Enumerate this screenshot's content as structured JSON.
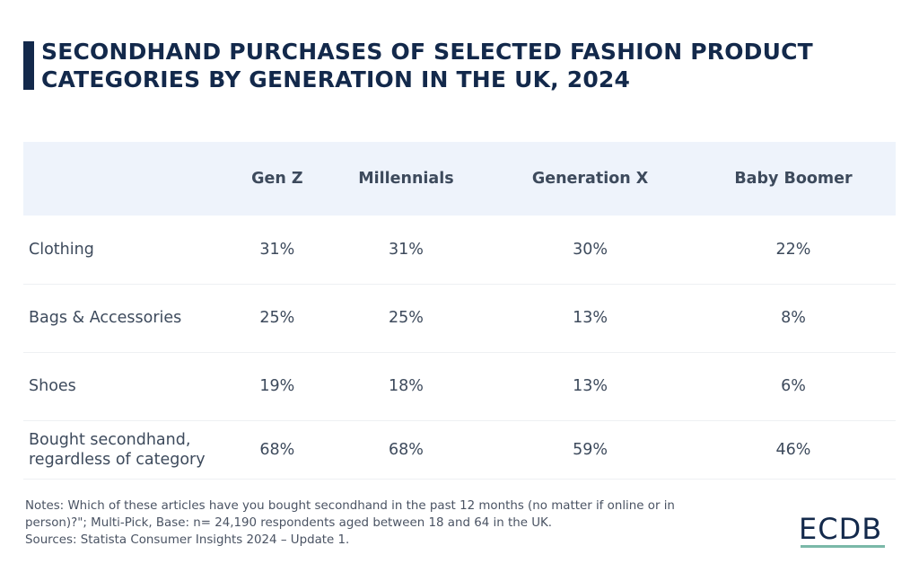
{
  "title_line1": "SECONDHAND PURCHASES OF SELECTED FASHION PRODUCT",
  "title_line2": "CATEGORIES BY GENERATION IN THE UK, 2024",
  "chart_data": {
    "type": "table",
    "title": "SECONDHAND PURCHASES OF SELECTED FASHION PRODUCT CATEGORIES BY GENERATION IN THE UK, 2024",
    "columns": [
      "",
      "Gen Z",
      "Millennials",
      "Generation X",
      "Baby Boomer"
    ],
    "rows": [
      {
        "label": "Clothing",
        "values": [
          "31%",
          "31%",
          "30%",
          "22%"
        ]
      },
      {
        "label": "Bags & Accessories",
        "values": [
          "25%",
          "25%",
          "13%",
          "8%"
        ]
      },
      {
        "label": "Shoes",
        "values": [
          "19%",
          "18%",
          "13%",
          "6%"
        ]
      },
      {
        "label_line1": "Bought secondhand,",
        "label_line2": "regardless of category",
        "values": [
          "68%",
          "68%",
          "59%",
          "46%"
        ]
      }
    ]
  },
  "notes_line1": "Notes: Which of these articles have you bought secondhand in the past 12 months (no matter if online or in",
  "notes_line2": "person)?\"; Multi-Pick, Base: n= 24,190 respondents aged between 18 and 64 in the UK.",
  "sources": "Sources: Statista Consumer Insights 2024 – Update 1.",
  "logo": "ECDB",
  "colors": {
    "title": "#13294b",
    "header_bg": "#eef3fb",
    "logo_accent": "#7ab8a8"
  }
}
